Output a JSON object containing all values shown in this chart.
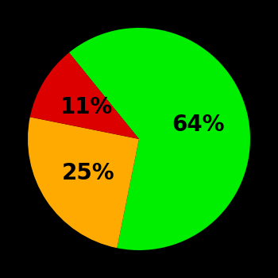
{
  "slices": [
    64,
    25,
    11
  ],
  "colors": [
    "#00ee00",
    "#ffaa00",
    "#dd0000"
  ],
  "labels": [
    "64%",
    "25%",
    "11%"
  ],
  "background_color": "#000000",
  "text_color": "#000000",
  "startangle": 129,
  "counterclock": false,
  "label_r": 0.55,
  "fontsize": 20,
  "figsize": [
    3.5,
    3.5
  ],
  "dpi": 100
}
